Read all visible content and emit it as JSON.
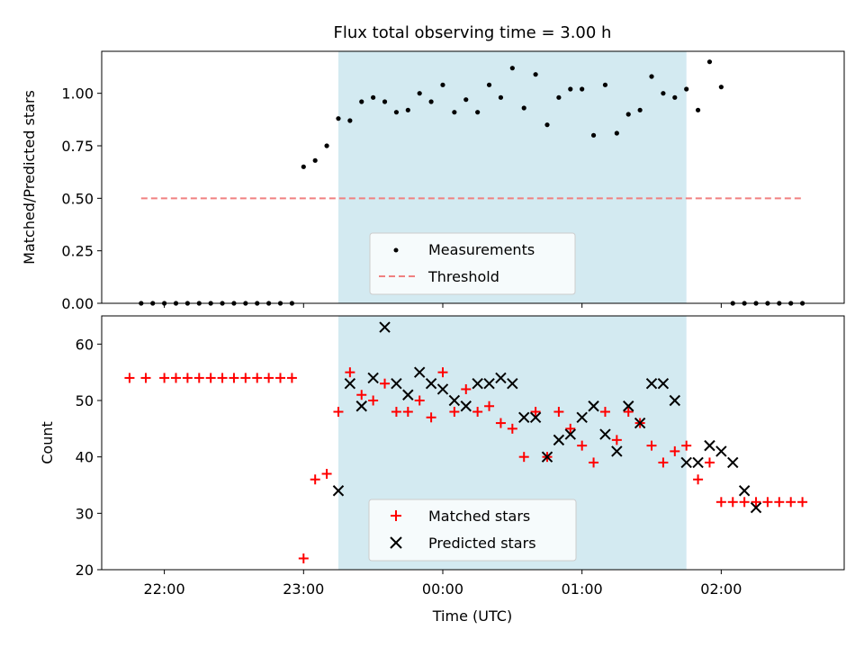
{
  "chart_data": [
    {
      "type": "scatter",
      "title": "Flux total observing time = 3.00 h",
      "xlabel": "",
      "ylabel": "Matched/Predicted stars",
      "xlim": [
        "21:33",
        "02:53"
      ],
      "ylim": [
        0,
        1.2
      ],
      "grid": false,
      "legend_position": "lower-center",
      "shaded_interval": [
        "23:15",
        "01:45"
      ],
      "shade_color": "#d3eaf1",
      "yticks": [
        "0.00",
        "0.25",
        "0.50",
        "0.75",
        "1.00"
      ],
      "series": [
        {
          "name": "Measurements",
          "kind": "points",
          "color": "#000000",
          "x": [
            "21:50",
            "21:55",
            "22:00",
            "22:05",
            "22:10",
            "22:15",
            "22:20",
            "22:25",
            "22:30",
            "22:35",
            "22:40",
            "22:45",
            "22:50",
            "22:55",
            "23:00",
            "23:05",
            "23:10",
            "23:15",
            "23:20",
            "23:25",
            "23:30",
            "23:35",
            "23:40",
            "23:45",
            "23:50",
            "23:55",
            "00:00",
            "00:05",
            "00:10",
            "00:15",
            "00:20",
            "00:25",
            "00:30",
            "00:35",
            "00:40",
            "00:45",
            "00:50",
            "00:55",
            "01:00",
            "01:05",
            "01:10",
            "01:15",
            "01:20",
            "01:25",
            "01:30",
            "01:35",
            "01:40",
            "01:45",
            "01:50",
            "01:55",
            "02:00",
            "02:05",
            "02:10",
            "02:15",
            "02:20",
            "02:25",
            "02:30",
            "02:35"
          ],
          "y": [
            0,
            0,
            0,
            0,
            0,
            0,
            0,
            0,
            0,
            0,
            0,
            0,
            0,
            0,
            0.65,
            0.68,
            0.75,
            0.88,
            0.87,
            0.96,
            0.98,
            0.96,
            0.91,
            0.92,
            1.0,
            0.96,
            1.04,
            0.91,
            0.97,
            0.91,
            1.04,
            0.98,
            1.12,
            0.93,
            1.09,
            0.85,
            0.98,
            1.02,
            1.02,
            0.8,
            1.04,
            0.81,
            0.9,
            0.92,
            1.08,
            1.0,
            0.98,
            1.02,
            0.92,
            1.15,
            1.03,
            0,
            0,
            0,
            0,
            0,
            0,
            0
          ]
        },
        {
          "name": "Threshold",
          "kind": "dashed-line",
          "color": "#f08080",
          "x": [
            "21:50",
            "02:35"
          ],
          "y": [
            0.5,
            0.5
          ]
        }
      ]
    },
    {
      "type": "scatter",
      "title": "",
      "xlabel": "Time (UTC)",
      "ylabel": "Count",
      "xlim": [
        "21:33",
        "02:53"
      ],
      "ylim": [
        20,
        65
      ],
      "grid": false,
      "legend_position": "lower-center",
      "shaded_interval": [
        "23:15",
        "01:45"
      ],
      "shade_color": "#d3eaf1",
      "xticks": [
        "22:00",
        "23:00",
        "00:00",
        "01:00",
        "02:00"
      ],
      "yticks": [
        "20",
        "30",
        "40",
        "50",
        "60"
      ],
      "series": [
        {
          "name": "Matched stars",
          "marker": "plus",
          "color": "#ff0000",
          "x": [
            "21:45",
            "21:52",
            "22:00",
            "22:05",
            "22:10",
            "22:15",
            "22:20",
            "22:25",
            "22:30",
            "22:35",
            "22:40",
            "22:45",
            "22:50",
            "22:55",
            "23:00",
            "23:05",
            "23:10",
            "23:15",
            "23:20",
            "23:25",
            "23:30",
            "23:35",
            "23:40",
            "23:45",
            "23:50",
            "23:55",
            "00:00",
            "00:05",
            "00:10",
            "00:15",
            "00:20",
            "00:25",
            "00:30",
            "00:35",
            "00:40",
            "00:45",
            "00:50",
            "00:55",
            "01:00",
            "01:05",
            "01:10",
            "01:15",
            "01:20",
            "01:25",
            "01:30",
            "01:35",
            "01:40",
            "01:45",
            "01:50",
            "01:55",
            "02:00",
            "02:05",
            "02:10",
            "02:15",
            "02:20",
            "02:25",
            "02:30",
            "02:35"
          ],
          "y": [
            54,
            54,
            54,
            54,
            54,
            54,
            54,
            54,
            54,
            54,
            54,
            54,
            54,
            54,
            22,
            36,
            37,
            48,
            55,
            51,
            50,
            53,
            48,
            48,
            50,
            47,
            55,
            48,
            52,
            48,
            49,
            46,
            45,
            40,
            48,
            40,
            48,
            45,
            42,
            39,
            48,
            43,
            48,
            46,
            42,
            39,
            41,
            42,
            36,
            39,
            32,
            32,
            32,
            32,
            32,
            32,
            32,
            32
          ]
        },
        {
          "name": "Predicted stars",
          "marker": "cross",
          "color": "#000000",
          "x": [
            "23:15",
            "23:20",
            "23:25",
            "23:30",
            "23:35",
            "23:40",
            "23:45",
            "23:50",
            "23:55",
            "00:00",
            "00:05",
            "00:10",
            "00:15",
            "00:20",
            "00:25",
            "00:30",
            "00:35",
            "00:40",
            "00:45",
            "00:50",
            "00:55",
            "01:00",
            "01:05",
            "01:10",
            "01:15",
            "01:20",
            "01:25",
            "01:30",
            "01:35",
            "01:40",
            "01:45",
            "01:50",
            "01:55",
            "02:00",
            "02:05",
            "02:10",
            "02:15"
          ],
          "y": [
            34,
            53,
            49,
            54,
            63,
            53,
            51,
            55,
            53,
            52,
            50,
            49,
            53,
            53,
            54,
            53,
            47,
            47,
            40,
            43,
            44,
            47,
            49,
            44,
            41,
            49,
            46,
            53,
            53,
            50,
            39,
            39,
            42,
            41,
            39,
            34,
            31
          ]
        }
      ]
    }
  ]
}
